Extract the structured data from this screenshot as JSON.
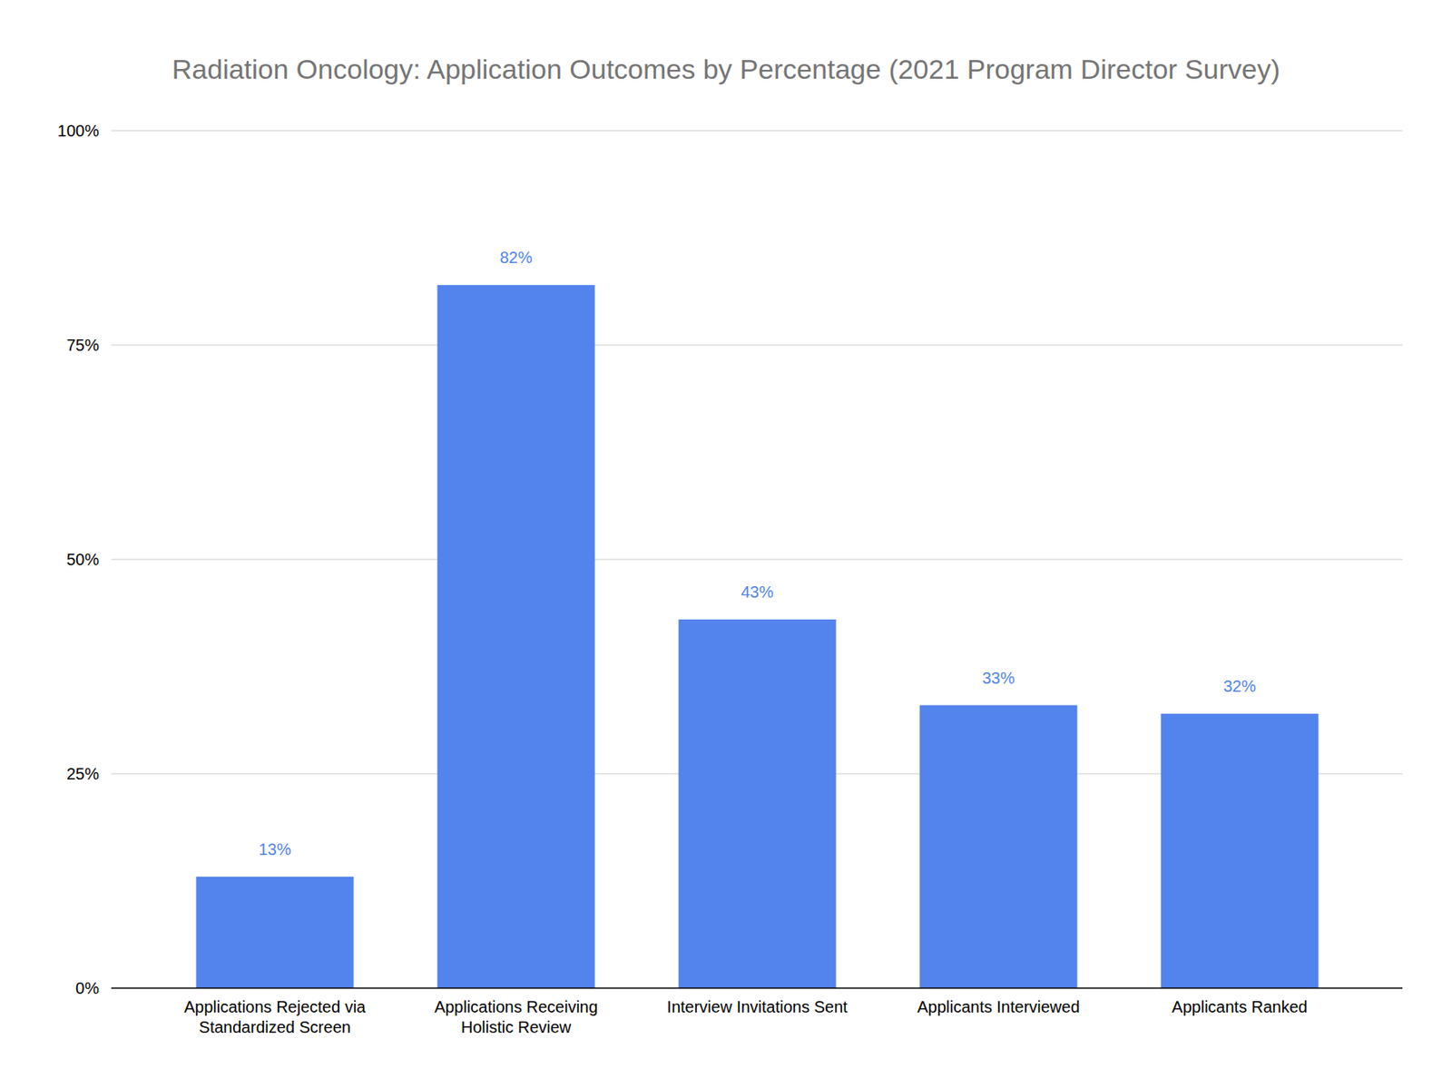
{
  "chart_data": {
    "type": "bar",
    "title": "Radiation Oncology: Application Outcomes by Percentage (2021 Program Director Survey)",
    "categories": [
      "Applications Rejected via Standardized Screen",
      "Applications Receiving Holistic Review",
      "Interview Invitations Sent",
      "Applicants Interviewed",
      "Applicants Ranked"
    ],
    "values": [
      13,
      82,
      43,
      33,
      32
    ],
    "value_labels": [
      "13%",
      "82%",
      "43%",
      "33%",
      "32%"
    ],
    "color": "#5383ec",
    "ylim": [
      0,
      100
    ],
    "yticks": [
      {
        "value": 0,
        "label": "0%"
      },
      {
        "value": 25,
        "label": "25%"
      },
      {
        "value": 50,
        "label": "50%"
      },
      {
        "value": 75,
        "label": "75%"
      },
      {
        "value": 100,
        "label": "100%"
      }
    ],
    "grid": true,
    "data_labels": true
  }
}
